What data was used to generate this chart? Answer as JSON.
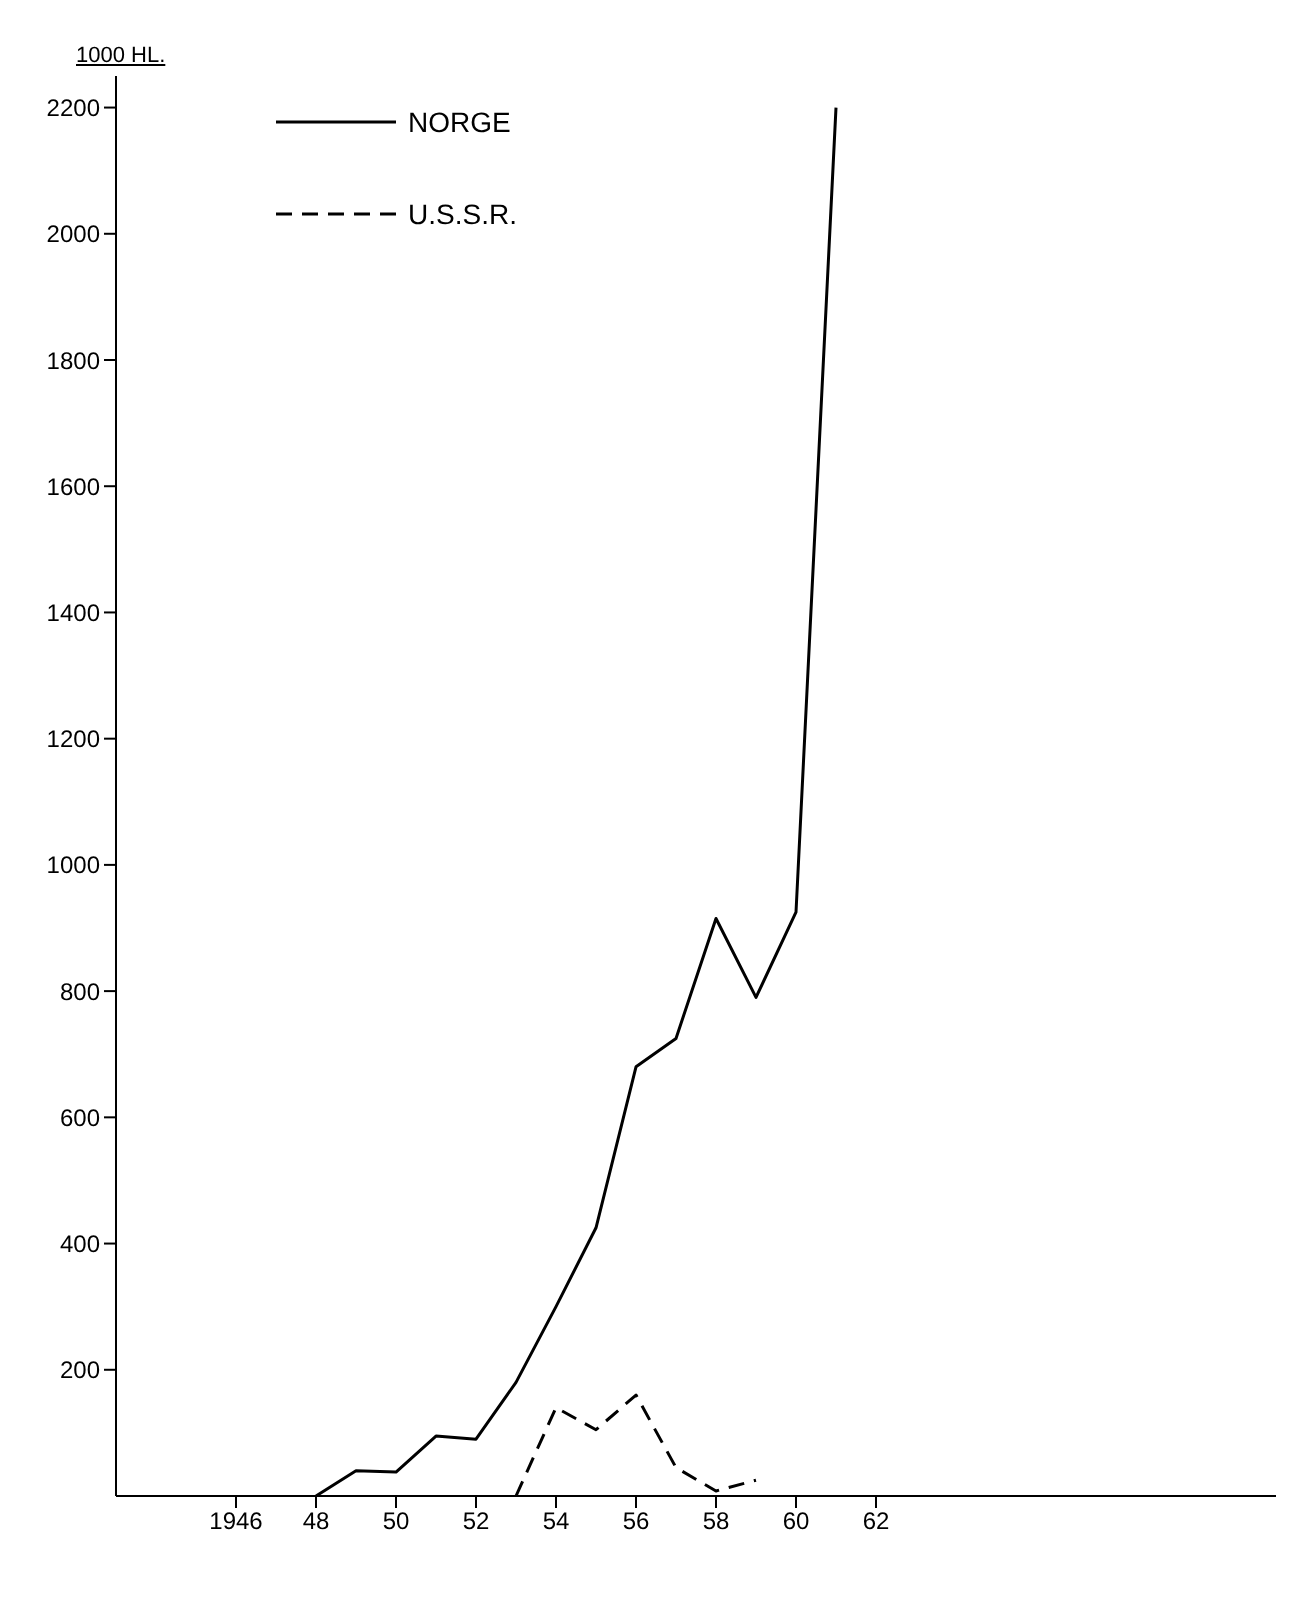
{
  "chart_data": {
    "type": "line",
    "ylabel": "1000 HL.",
    "xlim": [
      1943,
      1972
    ],
    "ylim": [
      0,
      2250
    ],
    "xticks": [
      1946,
      {
        "value": 1948,
        "label": "48"
      },
      {
        "value": 1950,
        "label": "50"
      },
      {
        "value": 1952,
        "label": "52"
      },
      {
        "value": 1954,
        "label": "54"
      },
      {
        "value": 1956,
        "label": "56"
      },
      {
        "value": 1958,
        "label": "58"
      },
      {
        "value": 1960,
        "label": "60"
      },
      {
        "value": 1962,
        "label": "62"
      }
    ],
    "yticks": [
      200,
      400,
      600,
      800,
      1000,
      1200,
      1400,
      1600,
      1800,
      2000,
      2200
    ],
    "grid": false,
    "legend": "top left",
    "marker": "none",
    "series": [
      {
        "name": "NORGE",
        "color": "#000000",
        "line_style": "solid",
        "x": [
          1948,
          1949,
          1950,
          1951,
          1952,
          1953,
          1954,
          1955,
          1956,
          1957,
          1958,
          1959,
          1960,
          1961
        ],
        "values": [
          0,
          40,
          38,
          95,
          90,
          180,
          300,
          425,
          680,
          725,
          915,
          790,
          925,
          2200
        ]
      },
      {
        "name": "U.S.S.R.",
        "color": "#000000",
        "line_style": "dashed",
        "x": [
          1953,
          1954,
          1955,
          1956,
          1957,
          1958,
          1959
        ],
        "values": [
          0,
          140,
          105,
          160,
          45,
          8,
          25
        ]
      }
    ]
  }
}
